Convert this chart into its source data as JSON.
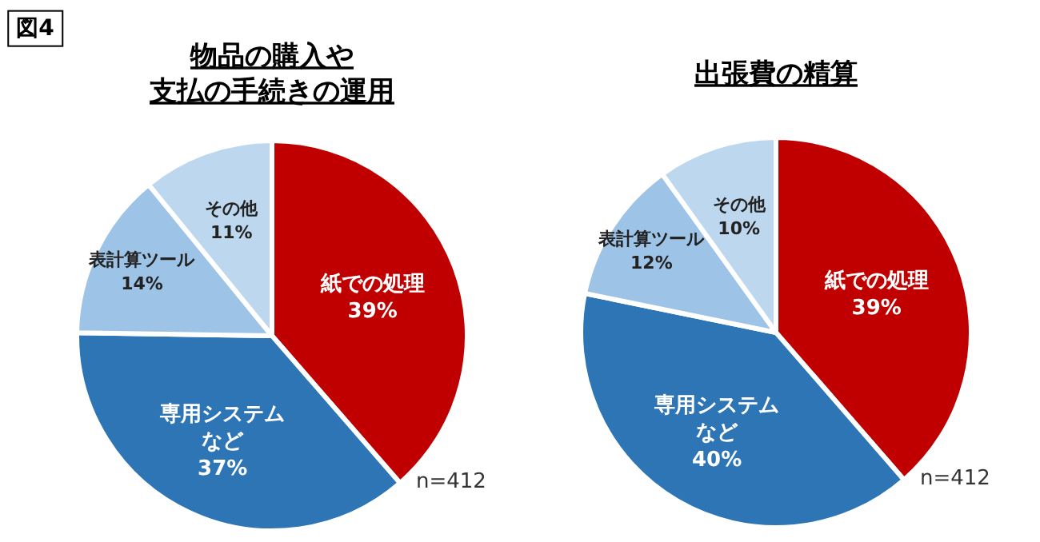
{
  "chart_data": [
    {
      "type": "pie",
      "title": "物品の購入や支払の手続きの運用",
      "categories": [
        "紙での処理",
        "専用システムなど",
        "表計算ツール",
        "その他"
      ],
      "values": [
        39,
        37,
        14,
        11
      ],
      "value_labels": [
        "39%",
        "37%",
        "14%",
        "11%"
      ],
      "colors": [
        "#c00000",
        "#2e75b6",
        "#9dc3e6",
        "#bdd7ee"
      ],
      "data_labels": true,
      "annotations": [
        "図4",
        "n=412"
      ]
    },
    {
      "type": "pie",
      "title": "出張費の精算",
      "categories": [
        "紙での処理",
        "専用システムなど",
        "表計算ツール",
        "その他"
      ],
      "values": [
        39,
        40,
        12,
        10
      ],
      "value_labels": [
        "39%",
        "40%",
        "12%",
        "10%"
      ],
      "colors": [
        "#c00000",
        "#2e75b6",
        "#9dc3e6",
        "#bdd7ee"
      ],
      "data_labels": true,
      "annotations": [
        "n=412"
      ]
    }
  ]
}
